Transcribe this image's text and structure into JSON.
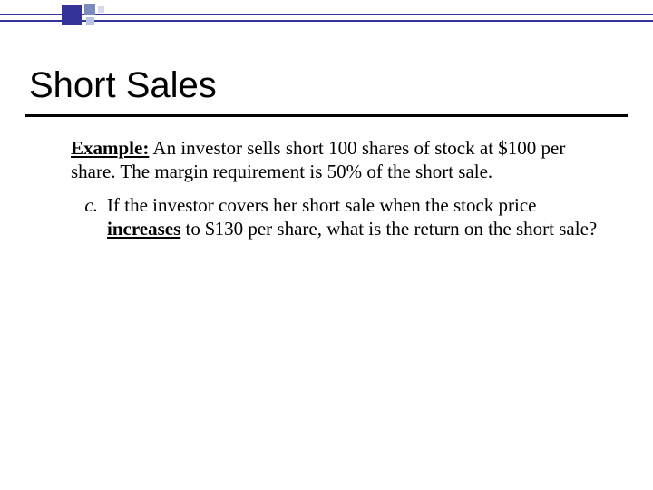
{
  "theme": {
    "accent": "#333399",
    "accent_mid": "#7b8abf",
    "accent_light": "#b9c2de",
    "accent_faint": "#d5dbed",
    "text": "#000000",
    "background": "#ffffff"
  },
  "title": "Short Sales",
  "example": {
    "label": "Example:",
    "intro": "An investor sells short 100 shares of stock at $100 per share.  The margin requirement is 50% of the short sale."
  },
  "item": {
    "letter": "c.",
    "pre": "If the investor covers her short sale when the stock price ",
    "emph": "increases",
    "post": " to $130 per share, what is the return on the short sale?"
  }
}
